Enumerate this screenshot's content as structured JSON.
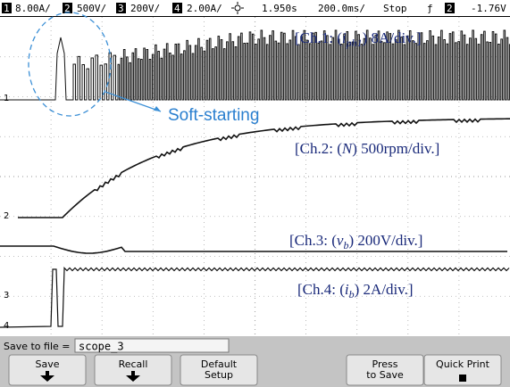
{
  "status_bar": {
    "ch1": {
      "badge": "1",
      "scale": "8.00A/"
    },
    "ch2": {
      "badge": "2",
      "scale": "500V/"
    },
    "ch3": {
      "badge": "3",
      "scale": "200V/"
    },
    "ch4": {
      "badge": "4",
      "scale": "2.00A/"
    },
    "delay": "1.950s",
    "timebase": "200.0ms/",
    "run_state": "Stop",
    "trigger_symbol": "ƒ",
    "trigger_channel": "2",
    "trigger_level": "-1.76V"
  },
  "ground_markers": [
    "1",
    "2",
    "3",
    "4"
  ],
  "annotations": {
    "ch1": {
      "prefix": "[Ch.1: (",
      "var": "i",
      "sub": "ph1",
      "suffix": ") 8A/div.]"
    },
    "ch2": {
      "prefix": "[Ch.2: (",
      "var": "N",
      "suffix": ") 500rpm/div.]"
    },
    "ch3": {
      "prefix": "[Ch.3: (",
      "var": "v",
      "sub": "b",
      "suffix": ") 200V/div.]"
    },
    "ch4": {
      "prefix": "[Ch.4: (",
      "var": "i",
      "sub": "b",
      "suffix": ") 2A/div.]"
    },
    "soft_start": "Soft-starting"
  },
  "save_row": {
    "label": "Save to file =",
    "filename": "scope_3"
  },
  "softkeys": [
    "Save",
    "Recall",
    "Default Setup",
    "Press to Save",
    "Quick Print"
  ]
}
